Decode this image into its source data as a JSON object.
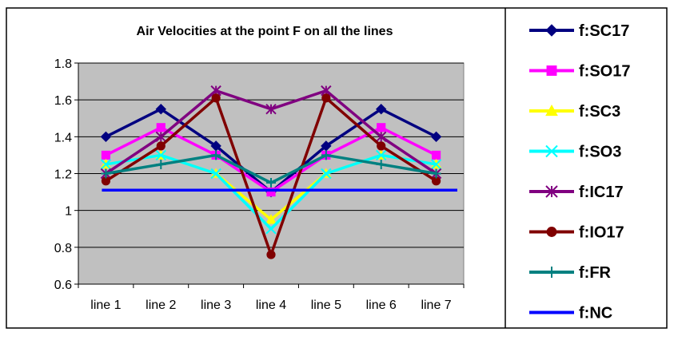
{
  "chart_data": {
    "type": "line",
    "title": "Air Velocities at the point F on all the lines",
    "xlabel": "",
    "ylabel": "",
    "categories": [
      "line 1",
      "line 2",
      "line 3",
      "line 4",
      "line 5",
      "line 6",
      "line 7"
    ],
    "ylim": [
      0.6,
      1.8
    ],
    "yticks": [
      0.6,
      0.8,
      1,
      1.2,
      1.4,
      1.6,
      1.8
    ],
    "ytick_labels": [
      "0.6",
      "0.8",
      "1",
      "1.2",
      "1.4",
      "1.6",
      "1.8"
    ],
    "grid": true,
    "plot_background": "#c0c0c0",
    "legend_position": "right",
    "series": [
      {
        "name": "f:SC17",
        "color": "#000080",
        "marker": "diamond",
        "values": [
          1.4,
          1.55,
          1.35,
          1.1,
          1.35,
          1.55,
          1.4
        ]
      },
      {
        "name": "f:SO17",
        "color": "#ff00ff",
        "marker": "square",
        "values": [
          1.3,
          1.45,
          1.3,
          1.1,
          1.3,
          1.45,
          1.3
        ]
      },
      {
        "name": "f:SC3",
        "color": "#ffff00",
        "marker": "triangle",
        "values": [
          1.25,
          1.3,
          1.2,
          0.95,
          1.2,
          1.3,
          1.25
        ]
      },
      {
        "name": "f:SO3",
        "color": "#00ffff",
        "marker": "x",
        "values": [
          1.25,
          1.3,
          1.2,
          0.9,
          1.2,
          1.3,
          1.25
        ]
      },
      {
        "name": "f:IC17",
        "color": "#800080",
        "marker": "star",
        "values": [
          1.2,
          1.4,
          1.65,
          1.55,
          1.65,
          1.4,
          1.2
        ]
      },
      {
        "name": "f:IO17",
        "color": "#800000",
        "marker": "circle",
        "values": [
          1.16,
          1.35,
          1.61,
          0.76,
          1.61,
          1.35,
          1.16
        ]
      },
      {
        "name": "f:FR",
        "color": "#008080",
        "marker": "plus",
        "values": [
          1.2,
          1.25,
          1.3,
          1.15,
          1.3,
          1.25,
          1.2
        ]
      },
      {
        "name": "f:NC",
        "color": "#0000ff",
        "marker": "none",
        "values": [
          1.11,
          1.11,
          1.11,
          1.11,
          1.11,
          1.11,
          1.11
        ]
      }
    ]
  }
}
